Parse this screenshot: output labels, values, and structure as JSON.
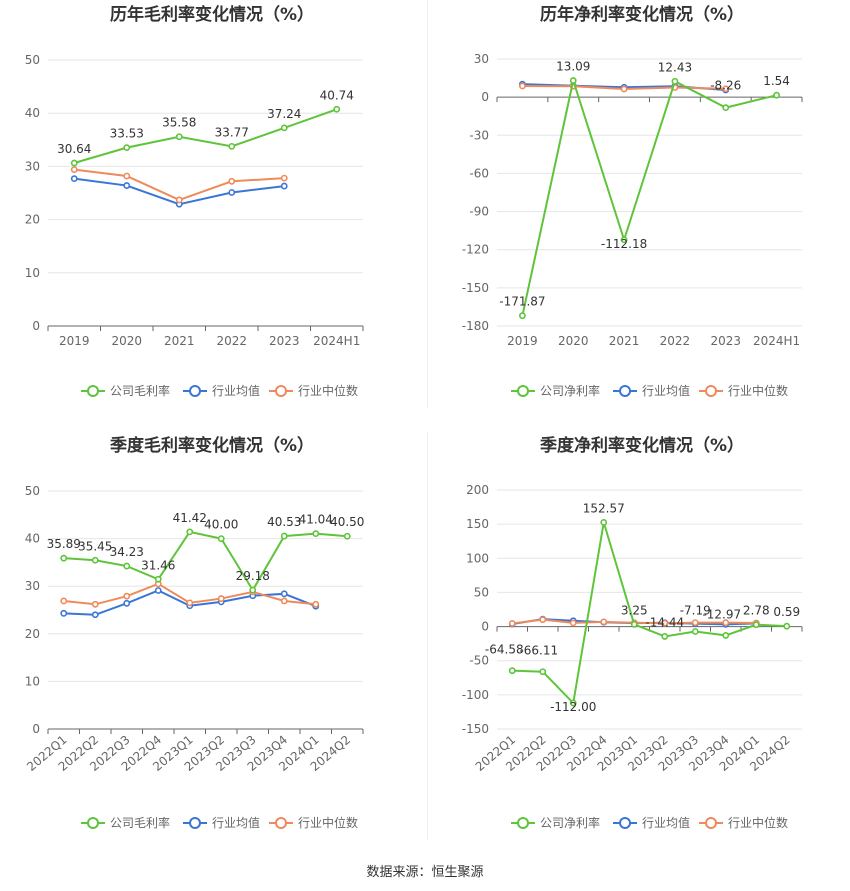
{
  "colors": {
    "company": "#5ec43a",
    "industry_avg": "#3a76d8",
    "industry_median": "#ef8a5a"
  },
  "source": "数据来源：恒生聚源",
  "chart_data": [
    {
      "type": "line",
      "title": "历年毛利率变化情况（%）",
      "categories": [
        "2019",
        "2020",
        "2021",
        "2022",
        "2023",
        "2024H1"
      ],
      "ylim": [
        0,
        50
      ],
      "yticks": [
        0,
        10,
        20,
        30,
        40,
        50
      ],
      "x_rotated": false,
      "grid": true,
      "legend": "bottom",
      "series": [
        {
          "name": "公司毛利率",
          "role": "company",
          "values": [
            30.64,
            33.53,
            35.58,
            33.77,
            37.24,
            40.74
          ],
          "labels": [
            "30.64",
            "33.53",
            "35.58",
            "33.77",
            "37.24",
            "40.74"
          ]
        },
        {
          "name": "行业均值",
          "role": "industry_avg",
          "values": [
            27.7,
            26.4,
            22.9,
            25.1,
            26.3,
            null
          ]
        },
        {
          "name": "行业中位数",
          "role": "industry_median",
          "values": [
            29.4,
            28.2,
            23.7,
            27.2,
            27.8,
            null
          ]
        }
      ]
    },
    {
      "type": "line",
      "title": "历年净利率变化情况（%）",
      "categories": [
        "2019",
        "2020",
        "2021",
        "2022",
        "2023",
        "2024H1"
      ],
      "ylim": [
        -180,
        30
      ],
      "yticks": [
        -180,
        -150,
        -120,
        -90,
        -60,
        -30,
        0,
        30
      ],
      "x_rotated": false,
      "grid": true,
      "legend": "bottom",
      "series": [
        {
          "name": "公司净利率",
          "role": "company",
          "values": [
            -171.87,
            13.09,
            -112.18,
            12.43,
            -8.26,
            1.54
          ],
          "labels": [
            "-171.87",
            "13.09",
            "-112.18",
            "12.43",
            "-8.26",
            "1.54"
          ]
        },
        {
          "name": "行业均值",
          "role": "industry_avg",
          "values": [
            10.2,
            9.0,
            7.8,
            8.6,
            5.6,
            null
          ]
        },
        {
          "name": "行业中位数",
          "role": "industry_median",
          "values": [
            8.8,
            8.6,
            6.4,
            7.6,
            6.6,
            null
          ]
        }
      ]
    },
    {
      "type": "line",
      "title": "季度毛利率变化情况（%）",
      "categories": [
        "2022Q1",
        "2022Q2",
        "2022Q3",
        "2022Q4",
        "2023Q1",
        "2023Q2",
        "2023Q3",
        "2023Q4",
        "2024Q1",
        "2024Q2"
      ],
      "ylim": [
        0,
        50
      ],
      "yticks": [
        0,
        10,
        20,
        30,
        40,
        50
      ],
      "x_rotated": true,
      "grid": true,
      "legend": "bottom",
      "series": [
        {
          "name": "公司毛利率",
          "role": "company",
          "values": [
            35.89,
            35.45,
            34.23,
            31.46,
            41.42,
            40.0,
            29.18,
            40.53,
            41.04,
            40.5
          ],
          "labels": [
            "35.89",
            "35.45",
            "34.23",
            "31.46",
            "41.42",
            "40.00",
            "29.18",
            "40.53",
            "41.04",
            "40.50"
          ]
        },
        {
          "name": "行业均值",
          "role": "industry_avg",
          "values": [
            24.3,
            24.0,
            26.4,
            29.1,
            25.9,
            26.7,
            28.0,
            28.4,
            25.8,
            null
          ]
        },
        {
          "name": "行业中位数",
          "role": "industry_median",
          "values": [
            26.9,
            26.2,
            27.9,
            30.5,
            26.5,
            27.4,
            28.8,
            26.9,
            26.2,
            null
          ]
        }
      ]
    },
    {
      "type": "line",
      "title": "季度净利率变化情况（%）",
      "categories": [
        "2022Q1",
        "2022Q2",
        "2022Q3",
        "2022Q4",
        "2023Q1",
        "2023Q2",
        "2023Q3",
        "2023Q4",
        "2024Q1",
        "2024Q2"
      ],
      "ylim": [
        -150,
        200
      ],
      "yticks": [
        -150,
        -100,
        -50,
        0,
        50,
        100,
        150,
        200
      ],
      "x_rotated": true,
      "grid": true,
      "legend": "bottom",
      "series": [
        {
          "name": "公司净利率",
          "role": "company",
          "values": [
            -64.58,
            -66.11,
            -112.0,
            152.57,
            3.25,
            -14.44,
            -7.19,
            -12.97,
            2.78,
            0.59
          ],
          "labels": [
            "-64.58",
            "-66.11",
            "-112.00",
            "152.57",
            "3.25",
            "-14.44",
            "-7.19",
            "-12.97",
            "2.78",
            "0.59"
          ]
        },
        {
          "name": "行业均值",
          "role": "industry_avg",
          "values": [
            3.8,
            10.9,
            8.5,
            6.4,
            5.1,
            5.6,
            4.3,
            3.2,
            4.6,
            null
          ]
        },
        {
          "name": "行业中位数",
          "role": "industry_median",
          "values": [
            4.6,
            10.1,
            5.4,
            6.9,
            5.6,
            4.9,
            5.8,
            5.7,
            5.2,
            null
          ]
        }
      ]
    }
  ]
}
